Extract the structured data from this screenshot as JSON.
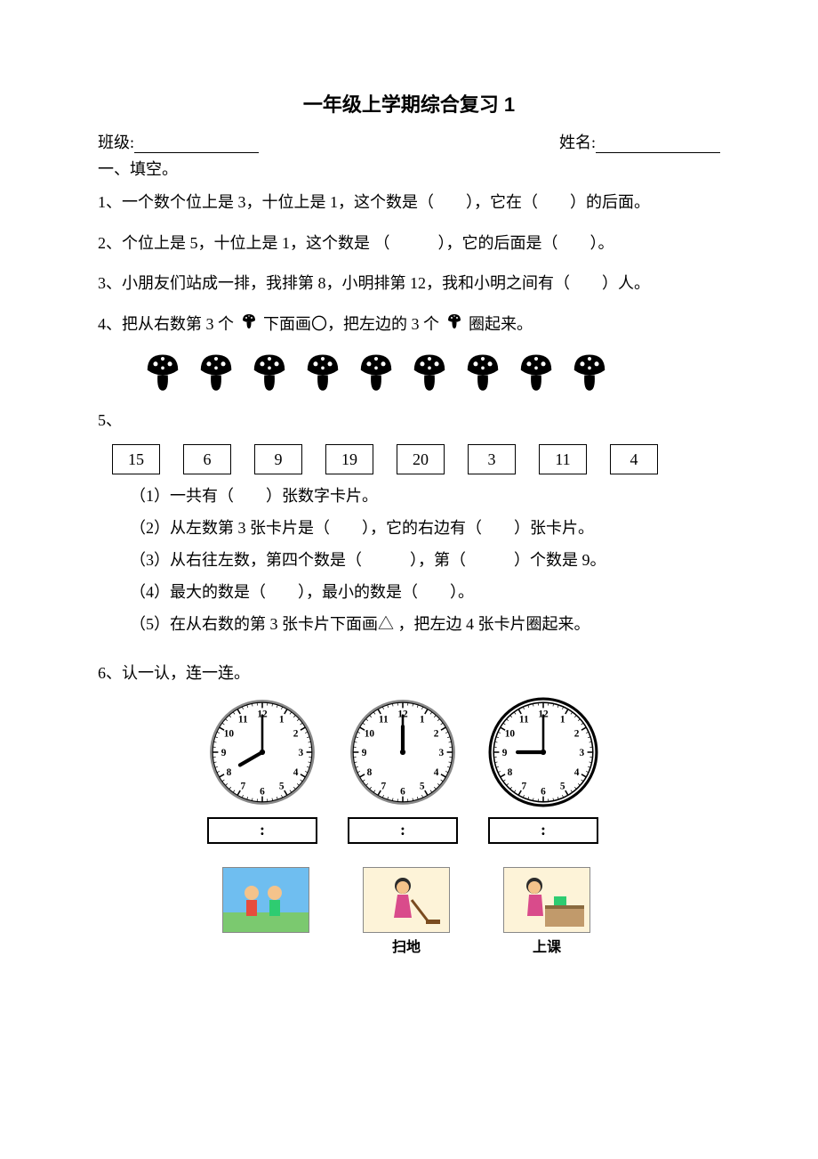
{
  "title": "一年级上学期综合复习 1",
  "header": {
    "class_label": "班级:",
    "name_label": "姓名:"
  },
  "section1": {
    "heading": "一、填空。"
  },
  "q1": "1、一个数个位上是 3，十位上是 1，这个数是（　　），它在（　　）的后面。",
  "q2": "2、个位上是 5，十位上是 1，这个数是 （　　　），它的后面是（　　）。",
  "q3": "3、小朋友们站成一排，我排第 8，小明排第 12，我和小明之间有（　　）人。",
  "q4_a": "4、把从右数第 3 个",
  "q4_b": "下面画〇，把左边的 3 个",
  "q4_c": "圈起来。",
  "mushrooms": {
    "count": 9,
    "color": "#000000"
  },
  "q5_lead": "5、",
  "cards": [
    "15",
    "6",
    "9",
    "19",
    "20",
    "3",
    "11",
    "4"
  ],
  "q5_1": "（1）一共有（　　）张数字卡片。",
  "q5_2": "（2）从左数第 3 张卡片是（　　），它的右边有（　　）张卡片。",
  "q5_3": "（3）从右往左数，第四个数是（　　　），第（　　　）个数是 9。",
  "q5_4": "（4）最大的数是（　　），最小的数是（　　）。",
  "q5_5": "（5）在从右数的第 3 张卡片下面画△ ，把左边 4 张卡片圈起来。",
  "q6": "6、认一认，连一连。",
  "clocks": [
    {
      "hour": 8,
      "minute": 0,
      "box": ":"
    },
    {
      "hour": 12,
      "minute": 0,
      "box": ":"
    },
    {
      "hour": 9,
      "minute": 0,
      "box": ":"
    }
  ],
  "activities": [
    {
      "label": "",
      "bg": "#7ec8e3"
    },
    {
      "label": "扫地",
      "bg": "#f4d6a0"
    },
    {
      "label": "上课",
      "bg": "#f4d6a0"
    }
  ]
}
